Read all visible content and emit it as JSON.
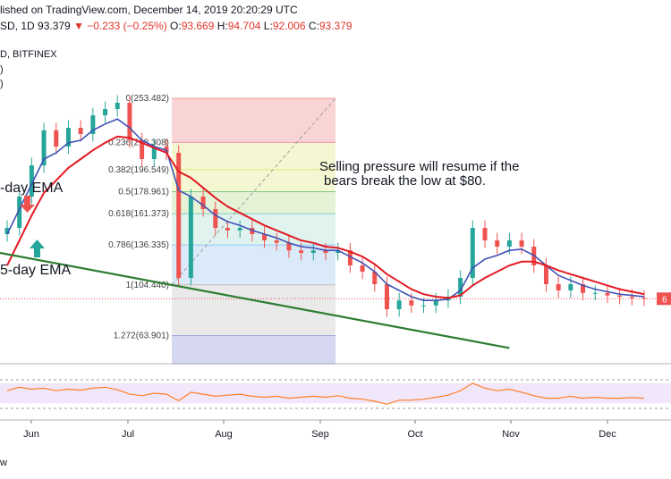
{
  "header": {
    "published": "lished on TradingView.com, December 14, 2019 20:20:29 UTC",
    "symbol": "SD, 1D",
    "last": "93.379",
    "change": "▼ −0.233 (−0.25%)",
    "o_label": "O:",
    "o_value": "93.669",
    "h_label": "H:",
    "h_value": "94.704",
    "l_label": "L:",
    "l_value": "92.006",
    "c_label": "C:",
    "c_value": "93.379",
    "exchange": "D, BITFINEX",
    "left_glyphs": [
      ")",
      ")"
    ]
  },
  "footer": {
    "text": "w"
  },
  "colors": {
    "up": "#26a69a",
    "down": "#ef5350",
    "ema_fast": "#3f51b5",
    "ema_slow": "#e31b23",
    "trendline": "#2e7d32",
    "rsi": "#ff7f27",
    "rsi_band": "#e9d6f7",
    "price_tag": "#ef5350"
  },
  "annotations": {
    "selling_line1": "Selling pressure will resume if the",
    "selling_line2": "bears break the low at $80.",
    "ema_fast_label": "-day EMA",
    "ema_slow_label": "-day EMA",
    "ema_slow_prefix": "5",
    "price_tag": "6"
  },
  "chart_data": {
    "type": "line",
    "title": "",
    "x_ticks": [
      "Jun",
      "Jul",
      "Aug",
      "Sep",
      "Oct",
      "Nov",
      "Dec"
    ],
    "fib_levels": [
      {
        "label": "0(253.482)",
        "value": 253.482,
        "color": "#ef9a9a"
      },
      {
        "label": "0.236(218.308)",
        "value": 218.308,
        "color": "#f48fb1"
      },
      {
        "label": "0.382(196.549)",
        "value": 196.549,
        "color": "#dce775"
      },
      {
        "label": "0.5(178.961)",
        "value": 178.961,
        "color": "#81c784"
      },
      {
        "label": "0.618(161.373)",
        "value": 161.373,
        "color": "#80cbc4"
      },
      {
        "label": "0.786(136.335)",
        "value": 136.335,
        "color": "#90caf9"
      },
      {
        "label": "1(104.440)",
        "value": 104.44,
        "color": "#bdbdbd"
      },
      {
        "label": "1.272(63.901)",
        "value": 63.901,
        "color": "#9fa8da"
      }
    ],
    "price_series": {
      "name": "Close",
      "x": [
        "May 20",
        "May 24",
        "May 28",
        "Jun 1",
        "Jun 5",
        "Jun 9",
        "Jun 13",
        "Jun 17",
        "Jun 21",
        "Jun 25",
        "Jun 29",
        "Jul 3",
        "Jul 7",
        "Jul 11",
        "Jul 15",
        "Jul 19",
        "Jul 23",
        "Jul 27",
        "Jul 31",
        "Aug 4",
        "Aug 8",
        "Aug 12",
        "Aug 16",
        "Aug 20",
        "Aug 24",
        "Aug 28",
        "Sep 1",
        "Sep 5",
        "Sep 9",
        "Sep 13",
        "Sep 17",
        "Sep 21",
        "Sep 25",
        "Sep 29",
        "Oct 3",
        "Oct 7",
        "Oct 11",
        "Oct 15",
        "Oct 19",
        "Oct 23",
        "Oct 27",
        "Oct 31",
        "Nov 4",
        "Nov 8",
        "Nov 12",
        "Nov 16",
        "Nov 20",
        "Nov 24",
        "Nov 28",
        "Dec 2",
        "Dec 6",
        "Dec 10",
        "Dec 14"
      ],
      "values": [
        150,
        175,
        200,
        228,
        215,
        230,
        225,
        240,
        245,
        250,
        220,
        205,
        215,
        210,
        110,
        175,
        165,
        150,
        148,
        150,
        145,
        140,
        138,
        132,
        130,
        132,
        130,
        132,
        120,
        115,
        105,
        85,
        92,
        88,
        88,
        92,
        95,
        110,
        150,
        140,
        135,
        140,
        135,
        120,
        105,
        100,
        105,
        98,
        98,
        96,
        95,
        94,
        93.379
      ]
    },
    "ema_fast": {
      "name": "EMA fast",
      "values": [
        145,
        165,
        185,
        205,
        210,
        218,
        220,
        228,
        233,
        237,
        230,
        220,
        215,
        212,
        180,
        175,
        168,
        160,
        155,
        152,
        148,
        145,
        142,
        138,
        135,
        134,
        132,
        132,
        127,
        122,
        115,
        105,
        100,
        95,
        92,
        92,
        93,
        100,
        118,
        125,
        128,
        132,
        133,
        128,
        120,
        112,
        108,
        104,
        101,
        99,
        97,
        96,
        95
      ]
    },
    "ema_slow": {
      "name": "EMA slow",
      "values": [
        120,
        140,
        160,
        178,
        188,
        198,
        205,
        212,
        218,
        223,
        222,
        218,
        214,
        210,
        195,
        190,
        182,
        174,
        167,
        162,
        157,
        152,
        148,
        144,
        140,
        138,
        135,
        134,
        131,
        127,
        121,
        113,
        107,
        101,
        97,
        95,
        94,
        96,
        104,
        110,
        115,
        120,
        123,
        123,
        120,
        116,
        113,
        110,
        107,
        104,
        101,
        99,
        97
      ]
    },
    "y_range": [
      45,
      275
    ],
    "rsi": {
      "name": "RSI",
      "values": [
        55,
        62,
        58,
        60,
        55,
        58,
        56,
        60,
        62,
        57,
        48,
        45,
        50,
        48,
        35,
        52,
        48,
        44,
        46,
        48,
        44,
        42,
        44,
        40,
        42,
        44,
        42,
        45,
        40,
        38,
        34,
        28,
        36,
        36,
        38,
        42,
        46,
        55,
        70,
        60,
        55,
        58,
        52,
        45,
        40,
        40,
        44,
        40,
        42,
        40,
        40,
        41,
        40
      ],
      "band": [
        30,
        70
      ]
    },
    "trendline": {
      "start": [
        "May 20",
        130
      ],
      "end": [
        "Oct 31",
        54
      ]
    },
    "last_price": 93.379
  }
}
